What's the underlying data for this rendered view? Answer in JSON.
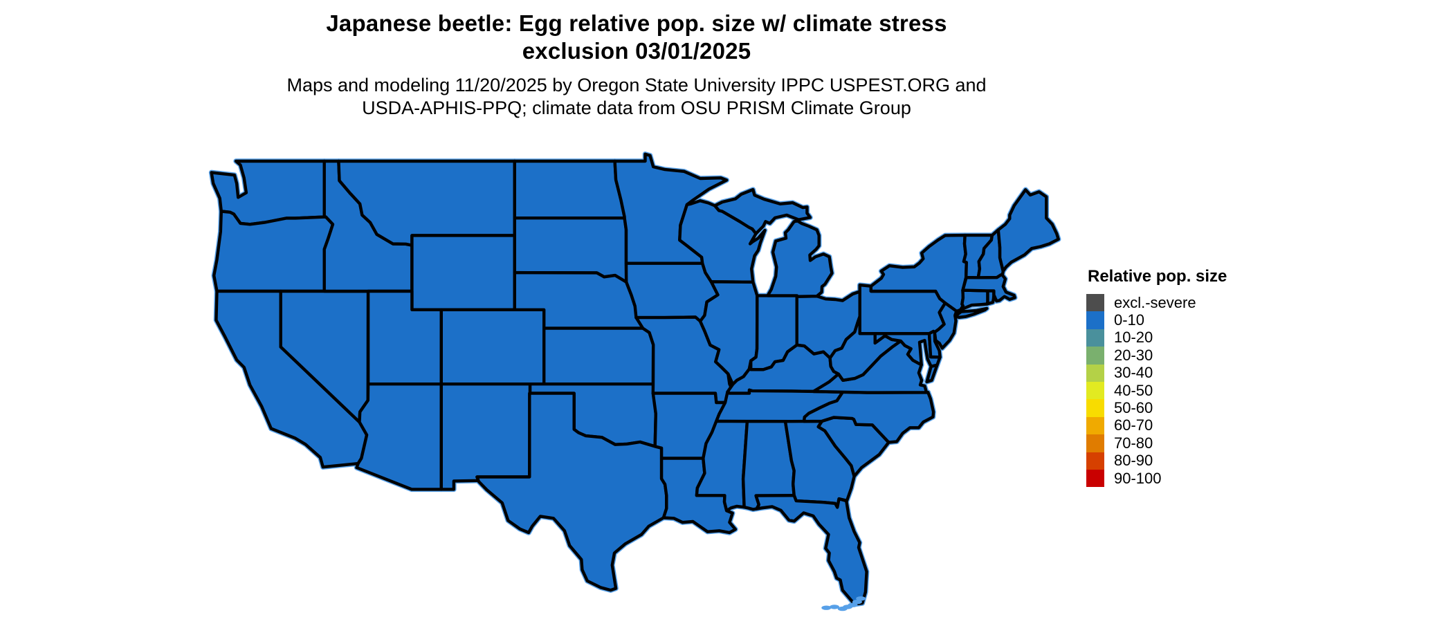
{
  "title": {
    "line1": "Japanese beetle: Egg relative pop. size w/ climate stress",
    "line2": "exclusion 03/01/2025"
  },
  "subtitle": {
    "line1": "Maps and modeling 11/20/2025 by Oregon State University IPPC USPEST.ORG and",
    "line2": "USDA-APHIS-PPQ; climate data from OSU PRISM Climate Group"
  },
  "legend": {
    "title": "Relative pop. size",
    "entries": [
      {
        "label": "excl.-severe",
        "color": "#4D4D4D"
      },
      {
        "label": "0-10",
        "color": "#1C70C8"
      },
      {
        "label": "10-20",
        "color": "#4A909C"
      },
      {
        "label": "20-30",
        "color": "#7AB06E"
      },
      {
        "label": "30-40",
        "color": "#B4D147"
      },
      {
        "label": "40-50",
        "color": "#E2EA21"
      },
      {
        "label": "50-60",
        "color": "#F8DC00"
      },
      {
        "label": "60-70",
        "color": "#F0AA00"
      },
      {
        "label": "70-80",
        "color": "#E07C00"
      },
      {
        "label": "80-90",
        "color": "#D64000"
      },
      {
        "label": "90-100",
        "color": "#C90000"
      }
    ]
  },
  "map": {
    "region": "Contiguous United States",
    "all_states_category": "0-10",
    "state_fill_color": "#1C70C8",
    "state_border_color": "#000000",
    "coastal_accent_color": "#57A0E8",
    "background_color": "#FFFFFF",
    "date_shown": "03/01/2025",
    "model_run_date": "11/20/2025"
  },
  "chart_data": {
    "type": "choropleth",
    "title": "Japanese beetle: Egg relative pop. size w/ climate stress exclusion 03/01/2025",
    "legend_title": "Relative pop. size",
    "classes": [
      "excl.-severe",
      "0-10",
      "10-20",
      "20-30",
      "30-40",
      "40-50",
      "50-60",
      "60-70",
      "70-80",
      "80-90",
      "90-100"
    ],
    "class_colors": [
      "#4D4D4D",
      "#1C70C8",
      "#4A909C",
      "#7AB06E",
      "#B4D147",
      "#E2EA21",
      "#F8DC00",
      "#F0AA00",
      "#E07C00",
      "#D64000",
      "#C90000"
    ],
    "values_note": "All 48 contiguous US states are shown in class 0-10"
  }
}
